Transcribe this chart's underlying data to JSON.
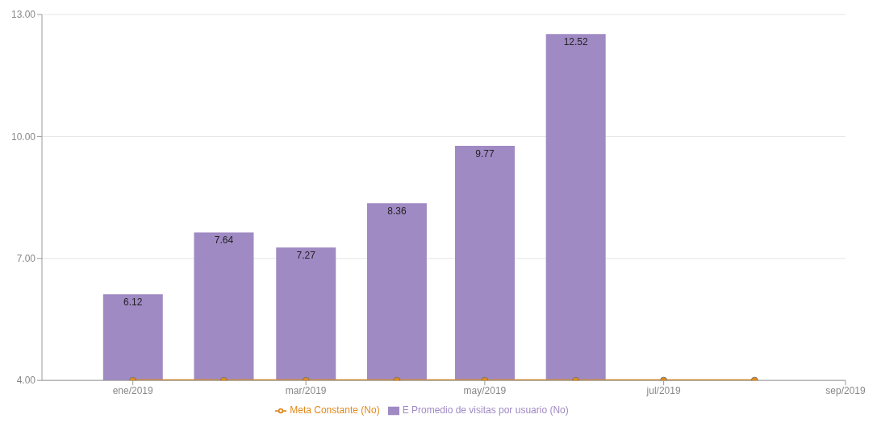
{
  "chart_data": {
    "type": "bar",
    "ylim": [
      4,
      13
    ],
    "yticks": [
      {
        "value": 4,
        "label": "4.00"
      },
      {
        "value": 7,
        "label": "7.00"
      },
      {
        "value": 10,
        "label": "10.00"
      },
      {
        "value": 13,
        "label": "13.00"
      }
    ],
    "xlim": [
      "2018-12",
      "2019-09"
    ],
    "xticks": [
      {
        "value": "2019-01",
        "label": "ene/2019"
      },
      {
        "value": "2019-03",
        "label": "mar/2019"
      },
      {
        "value": "2019-05",
        "label": "may/2019"
      },
      {
        "value": "2019-07",
        "label": "jul/2019"
      },
      {
        "value": "2019-09",
        "label": "sep/2019"
      }
    ],
    "grid": "y",
    "legend": "bottom",
    "marker": "circle",
    "series": [
      {
        "name": "Meta Constante (No)",
        "type": "line",
        "color": "#e08a1e",
        "x": [
          "2019-01",
          "2019-02",
          "2019-03",
          "2019-04",
          "2019-05",
          "2019-06",
          "2019-07",
          "2019-08"
        ],
        "values": [
          4,
          4,
          4,
          4,
          4,
          4,
          4,
          4
        ]
      },
      {
        "name": "E Promedio de visitas por usuario (No)",
        "color": "#a08ac4",
        "x": [
          "2019-01",
          "2019-02",
          "2019-03",
          "2019-04",
          "2019-05",
          "2019-06"
        ],
        "values": [
          6.12,
          7.64,
          7.27,
          8.36,
          9.77,
          12.52
        ],
        "data_labels": true
      }
    ]
  }
}
